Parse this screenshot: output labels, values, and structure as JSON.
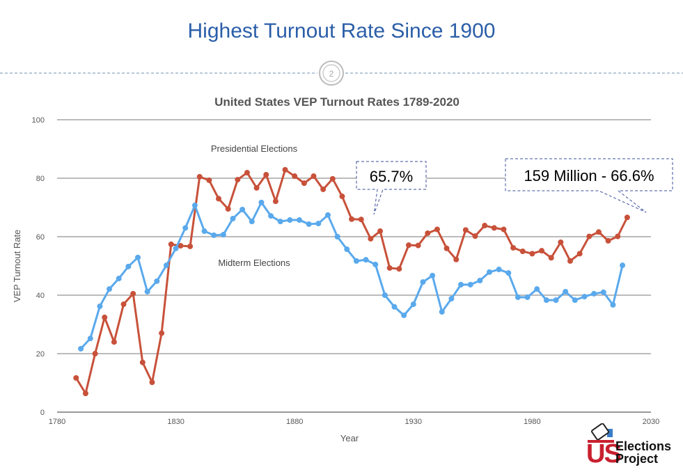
{
  "slide": {
    "title": "Highest Turnout Rate Since 1900",
    "page_number": "2"
  },
  "logo": {
    "us": "US",
    "line1": "Elections",
    "line2": "Project"
  },
  "colors": {
    "presidential": "#c8513a",
    "midterm": "#5aa9ec",
    "title": "#2b5ea8"
  },
  "callouts": [
    {
      "text": "65.7%"
    },
    {
      "text": "159 Million - 66.6%"
    }
  ],
  "chart_data": {
    "type": "line",
    "title": "United States VEP Turnout Rates 1789-2020",
    "xlabel": "Year",
    "ylabel": "VEP Turnout Rate",
    "xlim": [
      1780,
      2030
    ],
    "ylim": [
      0,
      100
    ],
    "xticks": [
      1780,
      1830,
      1880,
      1930,
      1980,
      2030
    ],
    "yticks": [
      0,
      20,
      40,
      60,
      80,
      100
    ],
    "grid": true,
    "annotations": [
      "Presidential Elections",
      "Midterm Elections"
    ],
    "series": [
      {
        "name": "Presidential Elections",
        "x": [
          1788,
          1792,
          1796,
          1800,
          1804,
          1808,
          1812,
          1816,
          1820,
          1824,
          1828,
          1832,
          1836,
          1840,
          1844,
          1848,
          1852,
          1856,
          1860,
          1864,
          1868,
          1872,
          1876,
          1880,
          1884,
          1888,
          1892,
          1896,
          1900,
          1904,
          1908,
          1912,
          1916,
          1920,
          1924,
          1928,
          1932,
          1936,
          1940,
          1944,
          1948,
          1952,
          1956,
          1960,
          1964,
          1968,
          1972,
          1976,
          1980,
          1984,
          1988,
          1992,
          1996,
          2000,
          2004,
          2008,
          2012,
          2016,
          2020
        ],
        "y": [
          11.7,
          6.4,
          20,
          32.4,
          24,
          36.9,
          40.5,
          17,
          10.2,
          27,
          57.4,
          56.9,
          56.7,
          80.5,
          79.3,
          73,
          69.5,
          79.5,
          81.9,
          76.7,
          81.2,
          72.1,
          82.9,
          80.7,
          78.3,
          80.7,
          76.2,
          79.8,
          73.8,
          66,
          65.9,
          59.3,
          61.9,
          49.3,
          49,
          57.1,
          57,
          61.2,
          62.5,
          56,
          52.2,
          62.3,
          60.2,
          63.8,
          63,
          62.5,
          56.2,
          55,
          54.2,
          55.2,
          52.8,
          58.1,
          51.7,
          54.2,
          60.1,
          61.6,
          58.6,
          60.1,
          66.6
        ]
      },
      {
        "name": "Midterm Elections",
        "x": [
          1790,
          1794,
          1798,
          1802,
          1806,
          1810,
          1814,
          1818,
          1822,
          1826,
          1830,
          1834,
          1838,
          1842,
          1846,
          1850,
          1854,
          1858,
          1862,
          1866,
          1870,
          1874,
          1878,
          1882,
          1886,
          1890,
          1894,
          1898,
          1902,
          1906,
          1910,
          1914,
          1918,
          1922,
          1926,
          1930,
          1934,
          1938,
          1942,
          1946,
          1950,
          1954,
          1958,
          1962,
          1966,
          1970,
          1974,
          1978,
          1982,
          1986,
          1990,
          1994,
          1998,
          2002,
          2006,
          2010,
          2014,
          2018
        ],
        "y": [
          21.7,
          25.2,
          36.2,
          42.1,
          45.7,
          49.8,
          52.9,
          41.2,
          44.8,
          50.2,
          56,
          63,
          70.7,
          61.9,
          60.5,
          60.7,
          66.2,
          69.3,
          65.2,
          71.7,
          67.1,
          65.2,
          65.7,
          65.7,
          64.3,
          64.5,
          67.4,
          60,
          55.7,
          51.7,
          52.1,
          50.5,
          40,
          36,
          33.1,
          36.9,
          44.5,
          46.7,
          34.3,
          38.8,
          43.6,
          43.6,
          45,
          47.9,
          48.8,
          47.6,
          39.3,
          39.3,
          42.1,
          38.3,
          38.3,
          41.2,
          38.3,
          39.5,
          40.5,
          41,
          36.7,
          50.2
        ]
      }
    ]
  }
}
